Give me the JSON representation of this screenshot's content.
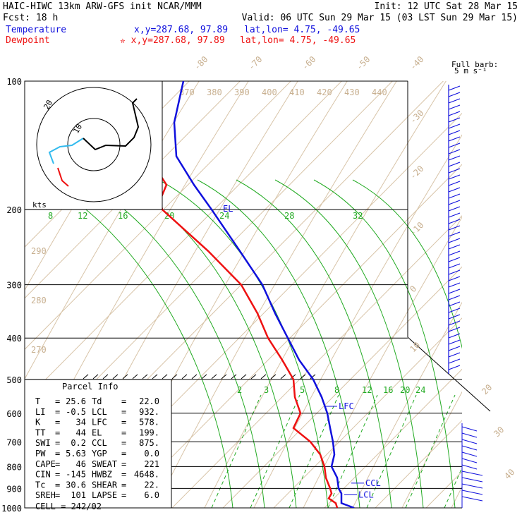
{
  "header": {
    "line1_left": "HAIC-HIWC 13km ARW-GFS init   NCAR/MMM",
    "line1_right": "Init: 12 UTC Sat 28 Mar 15",
    "fcst": "Fcst:    18 h",
    "valid": "Valid: 06 UTC Sun 29 Mar 15 (03 LST Sun 29 Mar 15)",
    "temp_label": "Temperature",
    "temp_xy": "x,y=287.68, 97.89",
    "temp_latlon": "lat,lon=  4.75, -49.65",
    "dew_label": "Dewpoint",
    "dew_xy": "✮ x,y=287.68, 97.89",
    "dew_latlon": "lat,lon=  4.75, -49.65",
    "barb_legend_1": "Full barb:",
    "barb_legend_2": "5 m s⁻¹"
  },
  "colors": {
    "temperature": "#1010dd",
    "dewpoint": "#ee1111",
    "isotherm": "#d8c4a8",
    "mixing_ratio": "#22aa22",
    "theta_label": "#c8b090",
    "grid": "#000000"
  },
  "chart_data": {
    "type": "line",
    "title": "",
    "pressure_levels": [
      100,
      200,
      300,
      400,
      500,
      600,
      700,
      800,
      900,
      1000
    ],
    "pressure_range": [
      1000,
      100
    ],
    "isotherm_labels": [
      -80,
      -70,
      -60,
      -50,
      -40,
      -30,
      -20,
      -10,
      0,
      10,
      20,
      30,
      40
    ],
    "theta_labels": [
      370,
      380,
      390,
      400,
      410,
      420,
      430,
      440
    ],
    "dry_adiabat_labels": [
      290,
      280,
      270
    ],
    "mixing_ratio_upper": [
      8,
      12,
      16,
      20,
      24,
      28,
      32
    ],
    "mixing_ratio_lower": [
      2,
      3,
      5,
      8,
      12,
      16,
      20,
      24
    ],
    "series": [
      {
        "name": "Temperature",
        "p": [
          1000,
          975,
          950,
          925,
          900,
          850,
          800,
          750,
          700,
          650,
          600,
          550,
          500,
          450,
          400,
          350,
          300,
          250,
          200,
          175,
          150,
          125,
          100
        ],
        "x": [
          502,
          484,
          484,
          484,
          480,
          478,
          470,
          474,
          472,
          468,
          464,
          456,
          444,
          424,
          408,
          390,
          372,
          340,
          300,
          275,
          250,
          247,
          260
        ]
      },
      {
        "name": "Dewpoint",
        "p": [
          1000,
          975,
          950,
          925,
          900,
          850,
          800,
          750,
          700,
          650,
          600,
          550,
          500,
          450,
          400,
          350,
          300,
          250,
          200,
          190,
          175,
          150,
          125,
          100
        ],
        "x": [
          478,
          476,
          466,
          470,
          468,
          462,
          460,
          454,
          440,
          416,
          426,
          418,
          416,
          400,
          380,
          365,
          342,
          295,
          230,
          227,
          236,
          210,
          200,
          228
        ]
      }
    ],
    "annotations": [
      {
        "label": "EL",
        "p": 199
      },
      {
        "label": "LFC",
        "p": 578
      },
      {
        "label": "CCL",
        "p": 875
      },
      {
        "label": "LCL",
        "p": 932
      }
    ],
    "hodograph": {
      "ring_labels": [
        "10",
        "20"
      ],
      "units": "kts"
    }
  },
  "parcel": {
    "title": "Parcel Info",
    "rows": [
      {
        "l1": "T",
        "v1": "25.6",
        "l2": "Td",
        "v2": "22.0"
      },
      {
        "l1": "LI",
        "v1": "-0.5",
        "l2": "LCL",
        "v2": "932."
      },
      {
        "l1": "K",
        "v1": "34",
        "l2": "LFC",
        "v2": "578."
      },
      {
        "l1": "TT",
        "v1": "44",
        "l2": "EL",
        "v2": "199."
      },
      {
        "l1": "SWI",
        "v1": "0.2",
        "l2": "CCL",
        "v2": "875."
      },
      {
        "l1": "PW",
        "v1": "5.63",
        "l2": "YGP",
        "v2": "0.0"
      },
      {
        "l1": "CAPE",
        "v1": "46",
        "l2": "SWEAT",
        "v2": "221"
      },
      {
        "l1": "CIN",
        "v1": "-145",
        "l2": "HWBZ",
        "v2": "4648."
      },
      {
        "l1": "Tc",
        "v1": "30.6",
        "l2": "SHEAR",
        "v2": "22."
      },
      {
        "l1": "SREH",
        "v1": "101",
        "l2": "LAPSE",
        "v2": "6.0"
      }
    ],
    "cell": "CELL = 242/02"
  }
}
